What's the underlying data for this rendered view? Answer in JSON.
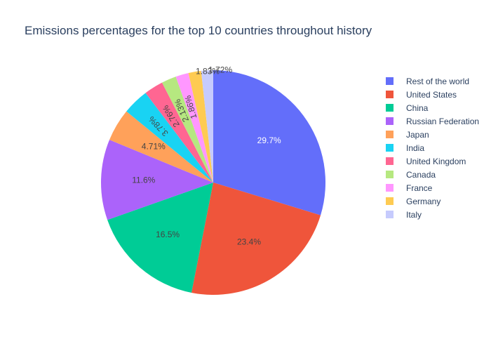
{
  "title": "Emissions percentages for the top 10 countries throughout history",
  "colors": {
    "title": "#2a3f5f",
    "inside_label": "#ffffff",
    "dark_label": "#444444"
  },
  "chart_data": {
    "type": "pie",
    "title": "Emissions percentages for the top 10 countries throughout history",
    "start_angle_deg": 90,
    "direction": "clockwise",
    "legend_position": "right",
    "slices": [
      {
        "name": "Rest of the world",
        "value": 29.7,
        "label": "29.7%",
        "color": "#636efa",
        "label_color": "#ffffff",
        "label_position": "inside",
        "rotated": false
      },
      {
        "name": "United States",
        "value": 23.4,
        "label": "23.4%",
        "color": "#ef553b",
        "label_color": "#444444",
        "label_position": "inside",
        "rotated": false
      },
      {
        "name": "China",
        "value": 16.5,
        "label": "16.5%",
        "color": "#00cc96",
        "label_color": "#444444",
        "label_position": "inside",
        "rotated": false
      },
      {
        "name": "Russian Federation",
        "value": 11.6,
        "label": "11.6%",
        "color": "#ab63fa",
        "label_color": "#444444",
        "label_position": "inside",
        "rotated": false
      },
      {
        "name": "Japan",
        "value": 4.71,
        "label": "4.71%",
        "color": "#ffa15a",
        "label_color": "#444444",
        "label_position": "inside",
        "rotated": false
      },
      {
        "name": "India",
        "value": 3.78,
        "label": "3.78%",
        "color": "#19d3f3",
        "label_color": "#444444",
        "label_position": "inside",
        "rotated": true
      },
      {
        "name": "United Kingdom",
        "value": 2.76,
        "label": "2.76%",
        "color": "#ff6692",
        "label_color": "#444444",
        "label_position": "inside",
        "rotated": true
      },
      {
        "name": "Canada",
        "value": 2.13,
        "label": "2.13%",
        "color": "#b6e880",
        "label_color": "#444444",
        "label_position": "inside",
        "rotated": true
      },
      {
        "name": "France",
        "value": 1.86,
        "label": "1.86%",
        "color": "#ff97ff",
        "label_color": "#444444",
        "label_position": "inside",
        "rotated": true
      },
      {
        "name": "Germany",
        "value": 1.83,
        "label": "1.83%",
        "color": "#fecb52",
        "label_color": "#444444",
        "label_position": "outside",
        "rotated": false
      },
      {
        "name": "Italy",
        "value": 1.72,
        "label": "1.72%",
        "color": "#c6cbfd",
        "label_color": "#444444",
        "label_position": "outside",
        "rotated": false
      }
    ]
  }
}
